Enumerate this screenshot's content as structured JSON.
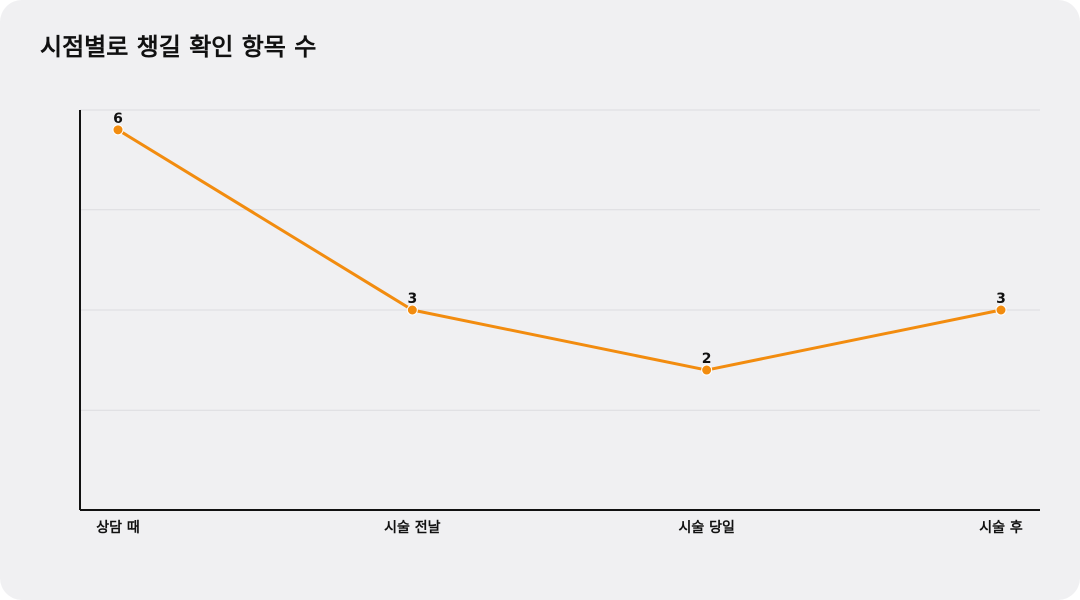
{
  "chart_data": {
    "type": "line",
    "title": "시점별로 챙길 확인 항목 수",
    "categories": [
      "상담 때",
      "시술 전날",
      "시술 당일",
      "시술 후"
    ],
    "values": [
      6,
      3,
      2,
      3
    ],
    "color": "#f28c0f",
    "ylim": [
      -0.33,
      6.33
    ],
    "yticks": [
      -0.33,
      1.33,
      3,
      4.67,
      6.33
    ],
    "ytick_labels": false,
    "grid": true
  }
}
